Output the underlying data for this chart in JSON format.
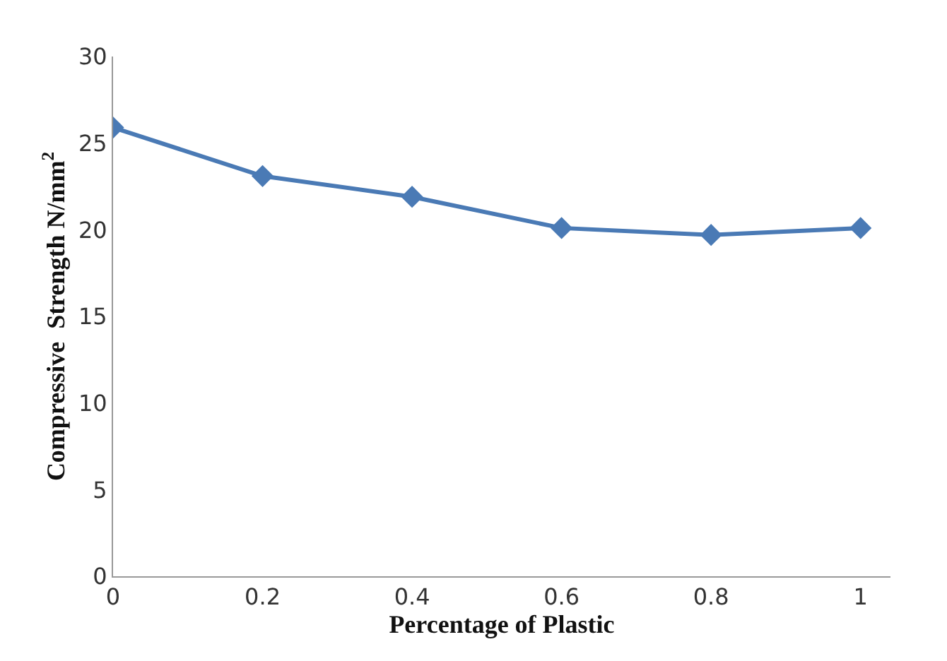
{
  "chart_data": {
    "type": "line",
    "xlabel": "Percentage of Plastic",
    "ylabel": "Compressive  Strength N/mm$^{2}$",
    "x": [
      0,
      0.2,
      0.4,
      0.6,
      0.8,
      1
    ],
    "series": [
      {
        "color": "#4a7ab5",
        "values": [
          25.9,
          23.1,
          21.9,
          20.1,
          19.7,
          20.1
        ]
      }
    ],
    "xlim": [
      0,
      1.04
    ],
    "xticks": [
      0,
      0.2,
      0.4,
      0.6,
      0.8,
      1
    ],
    "ylim": [
      0,
      30
    ],
    "yticks": [
      0,
      5,
      10,
      15,
      20,
      25,
      30
    ],
    "marker": "diamond",
    "line_style": "solid"
  }
}
